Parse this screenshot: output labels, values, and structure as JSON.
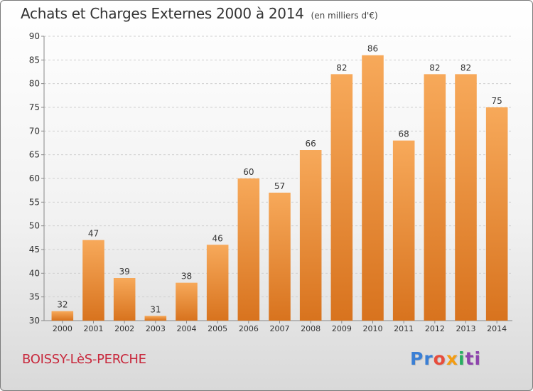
{
  "header": {
    "title": "Achats et Charges Externes 2000 à 2014",
    "unit": "(en milliers d'€)"
  },
  "footer": {
    "place": "BOISSY-LèS-PERCHE",
    "logo": [
      "Pr",
      "o",
      "x",
      "i",
      "ti"
    ]
  },
  "colors": {
    "bar_top": "#f7a95a",
    "bar_bottom": "#d8731e",
    "title": "#333333",
    "place": "#c8283c"
  },
  "chart_data": {
    "type": "bar",
    "categories": [
      "2000",
      "2001",
      "2002",
      "2003",
      "2004",
      "2005",
      "2006",
      "2007",
      "2008",
      "2009",
      "2010",
      "2011",
      "2012",
      "2013",
      "2014"
    ],
    "values": [
      32,
      47,
      39,
      31,
      38,
      46,
      60,
      57,
      66,
      82,
      86,
      68,
      82,
      82,
      75
    ],
    "ylim": [
      30,
      90
    ],
    "yticks": [
      30,
      35,
      40,
      45,
      50,
      55,
      60,
      65,
      70,
      75,
      80,
      85,
      90
    ],
    "grid": true,
    "data_labels": true
  }
}
